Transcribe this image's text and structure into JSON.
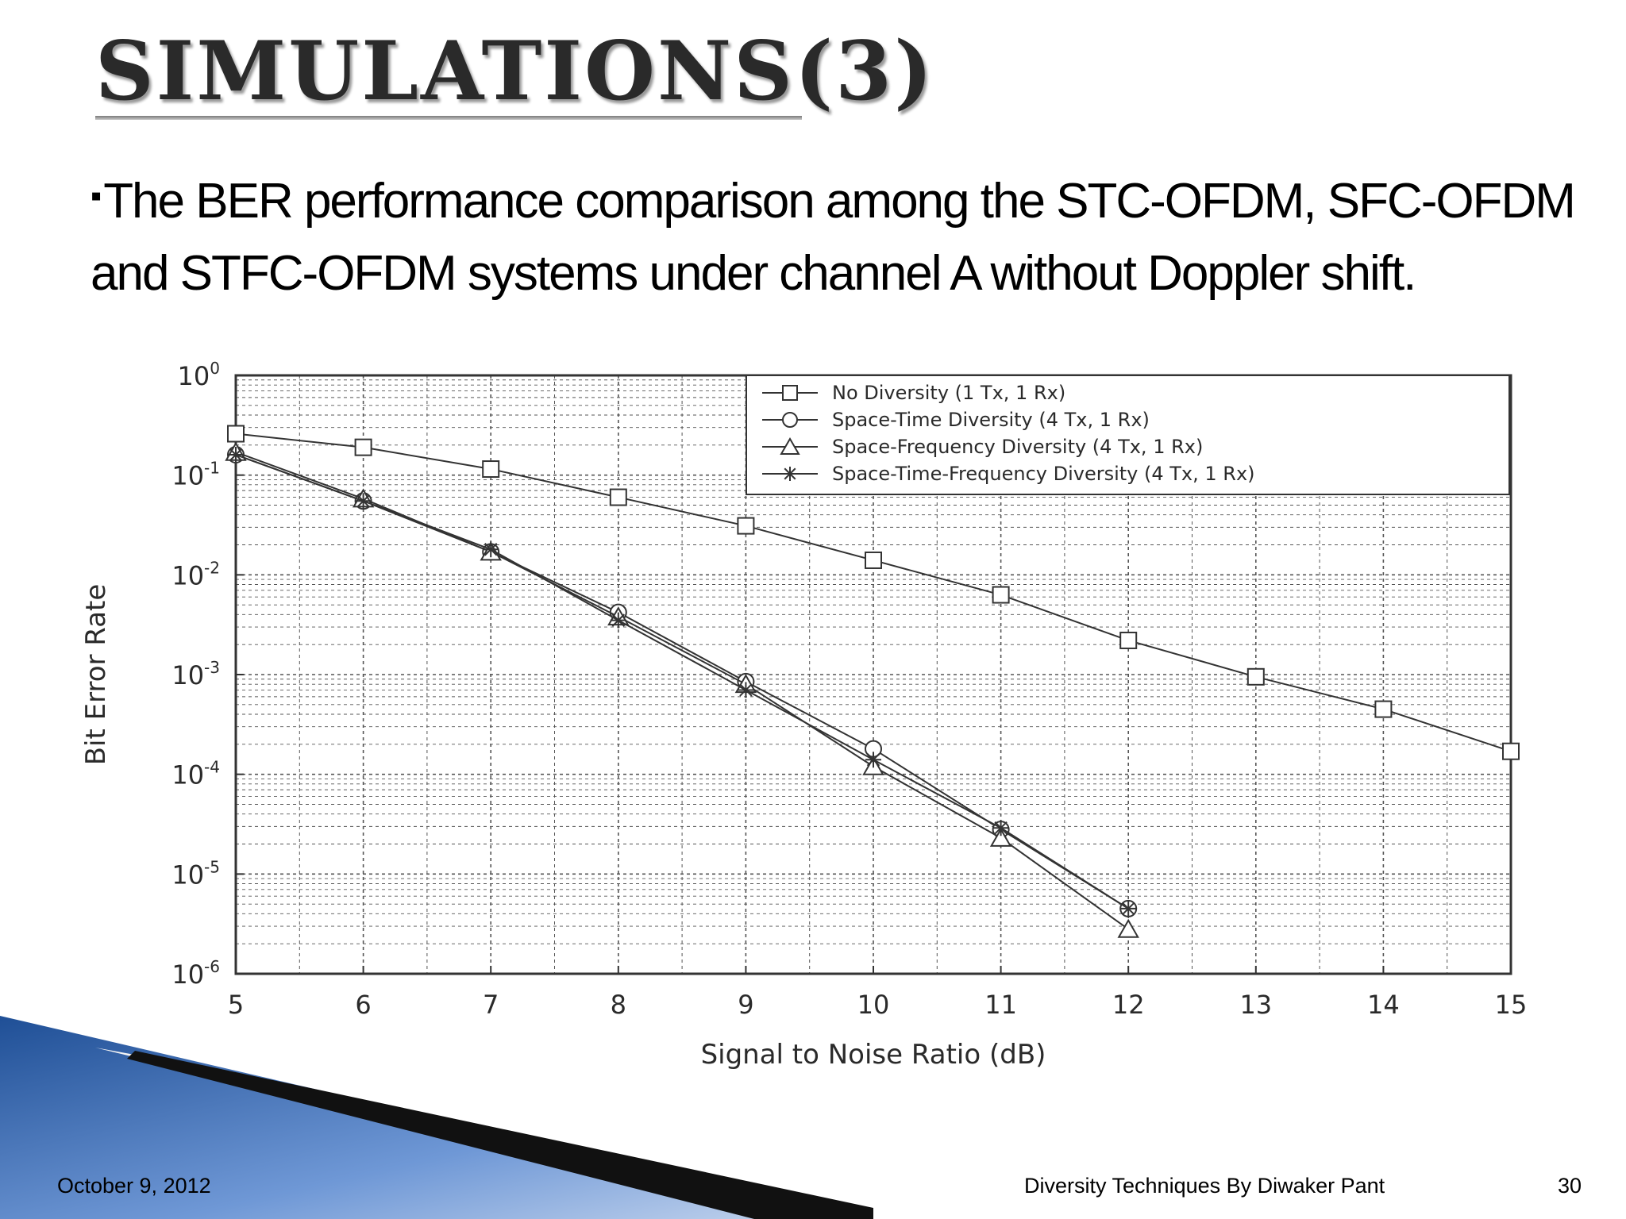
{
  "slide": {
    "title": "SIMULATIONS(3)",
    "bullet_marker": "▪",
    "bullet_text": "The BER performance comparison among the STC-OFDM, SFC-OFDM and STFC-OFDM systems under channel A without Doppler shift.",
    "footer_date": "October 9, 2012",
    "footer_author": "Diversity Techniques By  Diwaker Pant",
    "footer_page": "30"
  },
  "colors": {
    "title": "#2a2a2a",
    "text": "#000000",
    "plot_line": "#333333",
    "grid": "#555555",
    "deco_blue": "#2f63ad",
    "deco_dark": "#111111"
  },
  "chart_data": {
    "type": "line",
    "xlabel": "Signal to Noise Ratio (dB)",
    "ylabel": "Bit Error Rate",
    "xlim": [
      5,
      15
    ],
    "ylim": [
      1e-06,
      1
    ],
    "yscale": "log",
    "grid": true,
    "legend_position": "top-right",
    "x_ticks": [
      "5",
      "6",
      "7",
      "8",
      "9",
      "10",
      "11",
      "12",
      "13",
      "14",
      "15"
    ],
    "y_ticks": [
      {
        "base": "10",
        "exp": "0"
      },
      {
        "base": "10",
        "exp": "-1"
      },
      {
        "base": "10",
        "exp": "-2"
      },
      {
        "base": "10",
        "exp": "-3"
      },
      {
        "base": "10",
        "exp": "-4"
      },
      {
        "base": "10",
        "exp": "-5"
      },
      {
        "base": "10",
        "exp": "-6"
      }
    ],
    "series": [
      {
        "name": "No Diversity (1 Tx, 1 Rx)",
        "marker": "square",
        "x": [
          5,
          6,
          7,
          8,
          9,
          10,
          11,
          12,
          13,
          14,
          15
        ],
        "y": [
          0.26,
          0.19,
          0.115,
          0.06,
          0.031,
          0.014,
          0.0063,
          0.0022,
          0.00095,
          0.00045,
          0.00017
        ]
      },
      {
        "name": "Space-Time Diversity (4 Tx, 1 Rx)",
        "marker": "circle",
        "x": [
          5,
          6,
          7,
          8,
          9,
          10,
          11,
          12
        ],
        "y": [
          0.16,
          0.055,
          0.017,
          0.0042,
          0.00085,
          0.00018,
          2.8e-05,
          4.5e-06
        ]
      },
      {
        "name": "Space-Frequency Diversity (4 Tx, 1 Rx)",
        "marker": "triangle",
        "x": [
          5,
          6,
          7,
          8,
          9,
          10,
          11,
          12
        ],
        "y": [
          0.17,
          0.058,
          0.017,
          0.0038,
          0.0008,
          0.00012,
          2.3e-05,
          2.8e-06
        ]
      },
      {
        "name": "Space-Time-Frequency Diversity (4 Tx, 1 Rx)",
        "marker": "star",
        "x": [
          5,
          6,
          7,
          8,
          9,
          10,
          11,
          12
        ],
        "y": [
          0.16,
          0.055,
          0.018,
          0.0035,
          0.0007,
          0.00014,
          2.9e-05,
          4.5e-06
        ]
      }
    ]
  }
}
